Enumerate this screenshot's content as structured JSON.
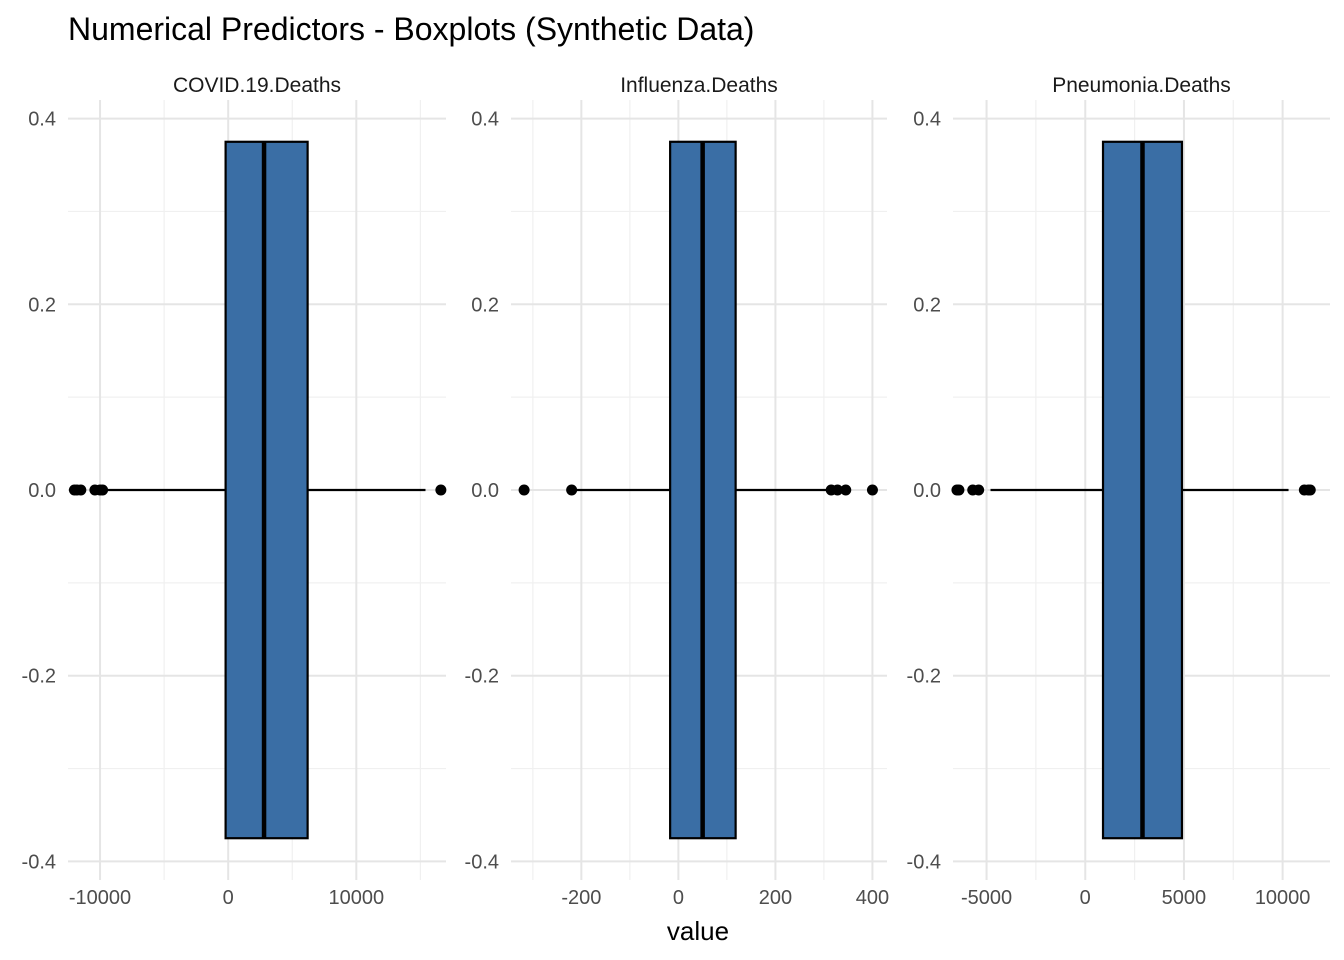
{
  "chart_data": {
    "type": "boxplot",
    "title": "Numerical Predictors - Boxplots (Synthetic Data)",
    "xlabel": "value",
    "ylabel": "",
    "grid": true,
    "box_color": "#3A6EA5",
    "y_ticks": [
      0.4,
      0.2,
      0.0,
      -0.2,
      -0.4
    ],
    "y_tick_labels": [
      "0.4",
      "0.2",
      "0.0",
      "-0.2",
      "-0.4"
    ],
    "ylim": [
      -0.4,
      0.4
    ],
    "box_y_range": [
      -0.375,
      0.375
    ],
    "facets": [
      {
        "name": "COVID.19.Deaths",
        "xlim": [
          -12500,
          17000
        ],
        "x_ticks": [
          -10000,
          0,
          10000
        ],
        "x_tick_labels": [
          "-10000",
          "0",
          "10000"
        ],
        "whisker_low": -9500,
        "q1": -200,
        "median": 2800,
        "q3": 6200,
        "whisker_high": 15400,
        "outliers": [
          -12000,
          -11800,
          -11500,
          -10400,
          -10000,
          -9800,
          16600
        ]
      },
      {
        "name": "Influenza.Deaths",
        "xlim": [
          -345,
          430
        ],
        "x_ticks": [
          -200,
          0,
          200,
          400
        ],
        "x_tick_labels": [
          "-200",
          "0",
          "200",
          "400"
        ],
        "whisker_low": -220,
        "q1": -17,
        "median": 50,
        "q3": 118,
        "whisker_high": 305,
        "outliers": [
          -318,
          -220,
          315,
          328,
          345,
          400
        ]
      },
      {
        "name": "Pneumonia.Deaths",
        "xlim": [
          -6700,
          12400
        ],
        "x_ticks": [
          -5000,
          0,
          5000,
          10000
        ],
        "x_tick_labels": [
          "-5000",
          "0",
          "5000",
          "10000"
        ],
        "whisker_low": -4800,
        "q1": 900,
        "median": 2900,
        "q3": 4900,
        "whisker_high": 10300,
        "outliers": [
          -6500,
          -6400,
          -5700,
          -5400,
          11100,
          11300,
          11400
        ]
      }
    ]
  }
}
